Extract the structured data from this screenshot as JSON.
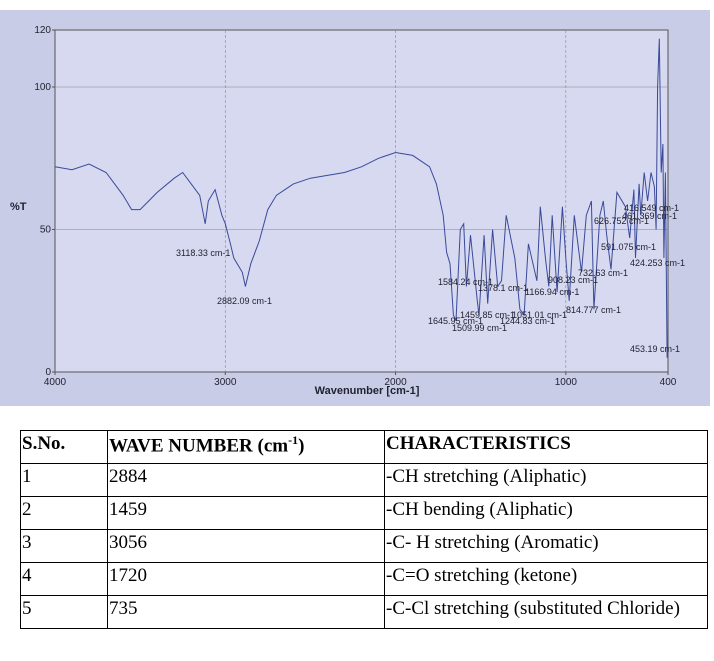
{
  "chart_data": {
    "type": "line",
    "x_label": "Wavenumber [cm-1]",
    "y_label": "%T",
    "xlim": [
      4000,
      400
    ],
    "ylim": [
      0,
      120
    ],
    "xticks": [
      4000,
      3000,
      2000,
      1000,
      400
    ],
    "yticks": [
      0,
      50,
      100,
      120
    ],
    "grid": true,
    "color": "#3a4a9a",
    "x": [
      4000,
      3900,
      3800,
      3700,
      3600,
      3550,
      3500,
      3450,
      3400,
      3300,
      3250,
      3200,
      3150,
      3118,
      3100,
      3060,
      3020,
      3000,
      2970,
      2950,
      2900,
      2882,
      2850,
      2800,
      2750,
      2700,
      2600,
      2500,
      2400,
      2300,
      2200,
      2100,
      2000,
      1900,
      1850,
      1800,
      1760,
      1720,
      1700,
      1680,
      1660,
      1645,
      1620,
      1600,
      1584,
      1560,
      1520,
      1510,
      1480,
      1459,
      1430,
      1400,
      1378,
      1350,
      1300,
      1270,
      1245,
      1220,
      1170,
      1150,
      1120,
      1100,
      1080,
      1051,
      1020,
      1000,
      980,
      950,
      908,
      880,
      850,
      835,
      800,
      780,
      760,
      735,
      700,
      650,
      625,
      600,
      591,
      570,
      560,
      540,
      520,
      500,
      480,
      470,
      461,
      451,
      440,
      430,
      424,
      415,
      405
    ],
    "values": [
      72,
      71,
      73,
      70,
      62,
      57,
      57,
      60,
      63,
      68,
      70,
      66,
      62,
      52,
      60,
      64,
      55,
      52,
      45,
      40,
      35,
      30,
      38,
      46,
      57,
      62,
      66,
      68,
      69,
      70,
      72,
      75,
      77,
      76,
      74,
      72,
      66,
      55,
      42,
      38,
      20,
      18,
      50,
      52,
      30,
      48,
      25,
      20,
      48,
      24,
      50,
      30,
      32,
      55,
      40,
      22,
      20,
      45,
      32,
      58,
      40,
      30,
      55,
      28,
      58,
      40,
      25,
      55,
      35,
      55,
      60,
      22,
      55,
      60,
      48,
      36,
      63,
      58,
      47,
      64,
      40,
      66,
      55,
      70,
      60,
      70,
      65,
      50,
      100,
      117,
      70,
      80,
      40,
      70,
      5
    ],
    "annotations": [
      "3118.33 cm-1",
      "2882.09 cm-1",
      "1584.24 cm-1",
      "1378.1 cm-1",
      "1166.94 cm-1",
      "1459.85 cm-1",
      "1051.01 cm-1",
      "1645.95 cm-1",
      "1244.83 cm-1",
      "1509.99 cm-1",
      "814.777 cm-1",
      "453.19 cm-1",
      "424.253 cm-1",
      "591.075 cm-1",
      "626.752 cm-1",
      "416.549 cm-1",
      "461.369 cm-1",
      "908.23 cm-1",
      "732.63 cm-1"
    ]
  },
  "table": {
    "headers": [
      "S.No.",
      {
        "text": "WAVE NUMBER (cm",
        "sup": "-1",
        "tail": ")"
      },
      "CHARACTERISTICS"
    ],
    "rows": [
      [
        "1",
        "2884",
        "-CH stretching (Aliphatic)"
      ],
      [
        "2",
        "1459",
        "-CH bending (Aliphatic)"
      ],
      [
        "3",
        "3056",
        "-C- H stretching (Aromatic)"
      ],
      [
        "4",
        "1720",
        "-C=O stretching (ketone)"
      ],
      [
        "5",
        "735",
        "-C-Cl stretching (substituted Chloride)"
      ]
    ]
  }
}
